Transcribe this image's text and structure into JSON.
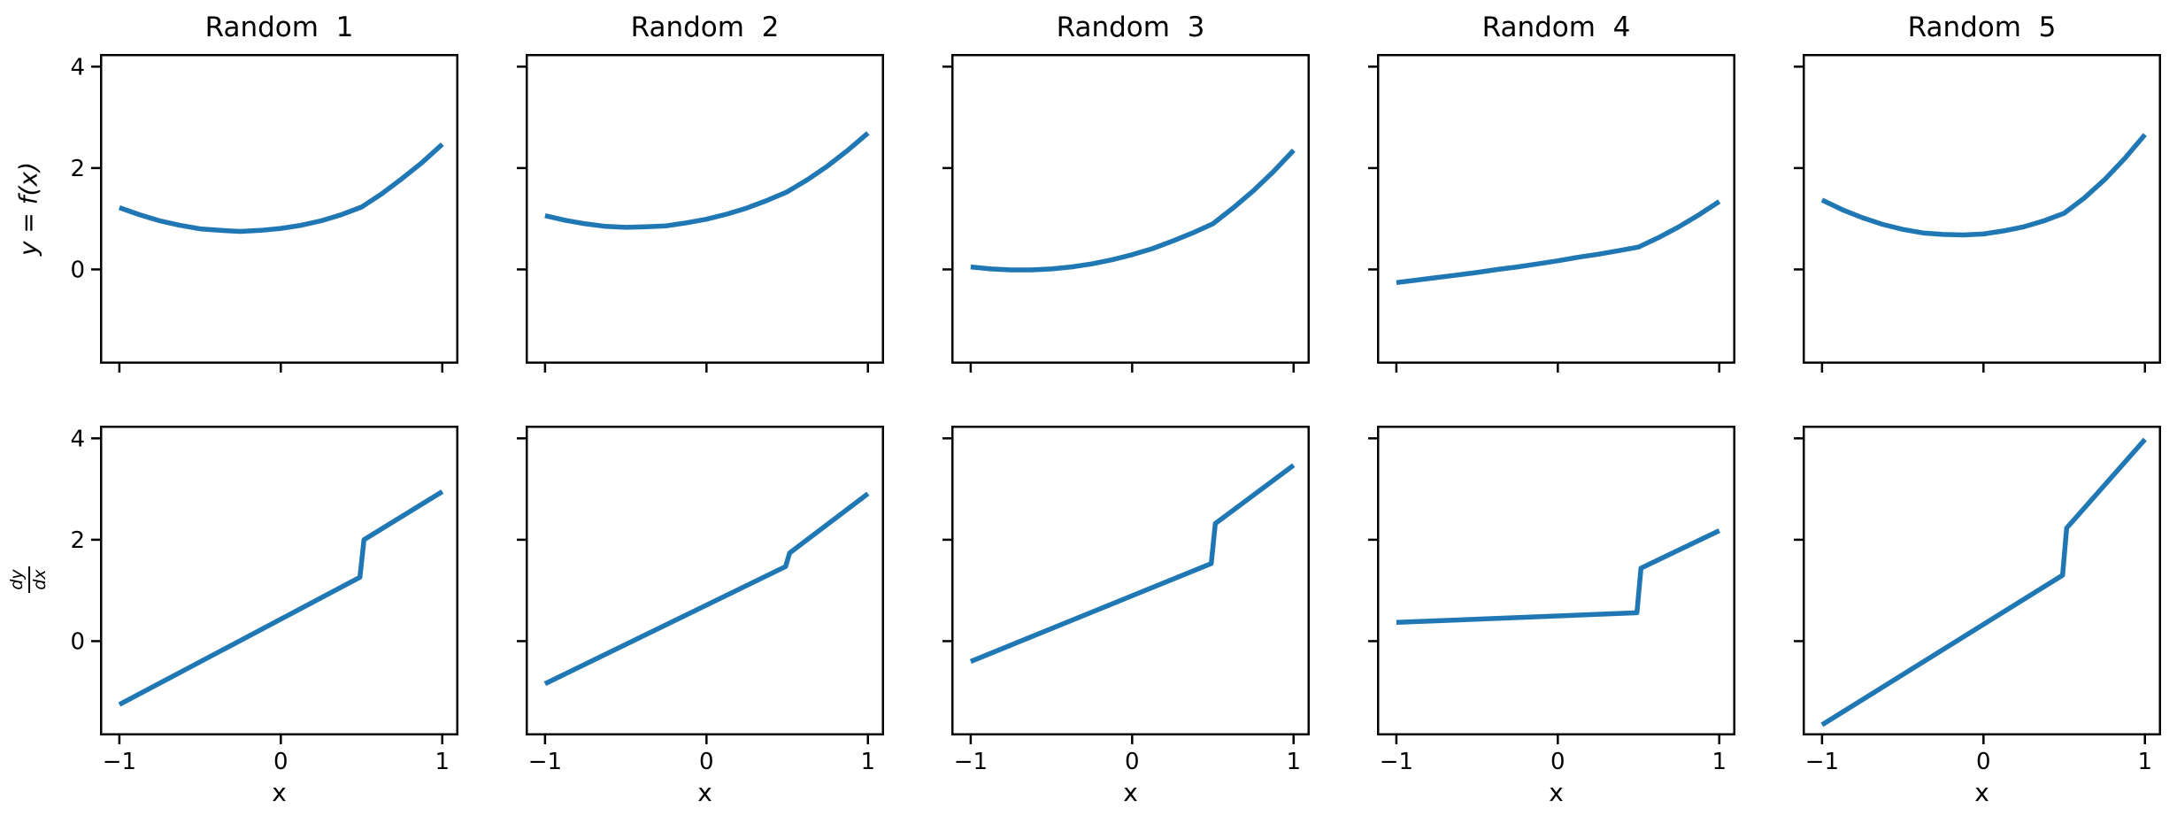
{
  "figure": {
    "background": "#ffffff",
    "line_color": "#1f77b4",
    "xlabel": "x",
    "ylabel_top": "y = f(x)",
    "ylabel_bottom_numerator": "dy",
    "ylabel_bottom_denominator": "dx",
    "columns": [
      {
        "title": "Random  1"
      },
      {
        "title": "Random  2"
      },
      {
        "title": "Random  3"
      },
      {
        "title": "Random  4"
      },
      {
        "title": "Random  5"
      }
    ],
    "axes": {
      "xlim": [
        -1.12,
        1.1
      ],
      "ylim": [
        -1.86,
        4.25
      ],
      "xticks": [
        -1,
        0,
        1
      ],
      "yticks": [
        4,
        2,
        0
      ],
      "xtick_labels": [
        "−1",
        "0",
        "1"
      ],
      "ytick_labels": [
        "4",
        "2",
        "0"
      ],
      "grid": false,
      "legend": "none"
    }
  },
  "chart_data": [
    {
      "type": "line",
      "row": 0,
      "col": 0,
      "title": "Random  1",
      "ylabel": "y = f(x)",
      "x": [
        -1,
        -0.875,
        -0.75,
        -0.625,
        -0.5,
        -0.375,
        -0.25,
        -0.125,
        0,
        0.125,
        0.25,
        0.375,
        0.5,
        0.625,
        0.75,
        0.875,
        1
      ],
      "y": [
        1.22,
        1.08,
        0.96,
        0.87,
        0.8,
        0.77,
        0.75,
        0.77,
        0.81,
        0.87,
        0.96,
        1.08,
        1.23,
        1.49,
        1.79,
        2.11,
        2.47
      ]
    },
    {
      "type": "line",
      "row": 0,
      "col": 1,
      "title": "Random  2",
      "ylabel": "y = f(x)",
      "x": [
        -1,
        -0.875,
        -0.75,
        -0.625,
        -0.5,
        -0.375,
        -0.25,
        -0.125,
        0,
        0.125,
        0.25,
        0.375,
        0.5,
        0.625,
        0.75,
        0.875,
        1
      ],
      "y": [
        1.06,
        0.97,
        0.9,
        0.85,
        0.83,
        0.84,
        0.86,
        0.92,
        0.99,
        1.09,
        1.21,
        1.36,
        1.53,
        1.77,
        2.04,
        2.35,
        2.69
      ]
    },
    {
      "type": "line",
      "row": 0,
      "col": 2,
      "title": "Random  3",
      "ylabel": "y = f(x)",
      "x": [
        -1,
        -0.875,
        -0.75,
        -0.625,
        -0.5,
        -0.375,
        -0.25,
        -0.125,
        0,
        0.125,
        0.25,
        0.375,
        0.5,
        0.625,
        0.75,
        0.875,
        1
      ],
      "y": [
        0.05,
        0.01,
        -0.01,
        -0.01,
        0.01,
        0.05,
        0.11,
        0.19,
        0.29,
        0.41,
        0.56,
        0.72,
        0.9,
        1.21,
        1.55,
        1.93,
        2.35
      ]
    },
    {
      "type": "line",
      "row": 0,
      "col": 3,
      "title": "Random  4",
      "ylabel": "y = f(x)",
      "x": [
        -1,
        -0.875,
        -0.75,
        -0.625,
        -0.5,
        -0.375,
        -0.25,
        -0.125,
        0,
        0.125,
        0.25,
        0.375,
        0.5,
        0.625,
        0.75,
        0.875,
        1
      ],
      "y": [
        -0.26,
        -0.21,
        -0.16,
        -0.11,
        -0.06,
        0.0,
        0.05,
        0.11,
        0.17,
        0.24,
        0.3,
        0.37,
        0.44,
        0.63,
        0.84,
        1.08,
        1.34
      ]
    },
    {
      "type": "line",
      "row": 0,
      "col": 4,
      "title": "Random  5",
      "ylabel": "y = f(x)",
      "x": [
        -1,
        -0.875,
        -0.75,
        -0.625,
        -0.5,
        -0.375,
        -0.25,
        -0.125,
        0,
        0.125,
        0.25,
        0.375,
        0.5,
        0.625,
        0.75,
        0.875,
        1
      ],
      "y": [
        1.37,
        1.18,
        1.02,
        0.89,
        0.79,
        0.72,
        0.69,
        0.68,
        0.7,
        0.76,
        0.84,
        0.96,
        1.11,
        1.41,
        1.77,
        2.19,
        2.66
      ]
    },
    {
      "type": "line",
      "row": 1,
      "col": 0,
      "title": "",
      "ylabel": "dy/dx",
      "x": [
        -1,
        0.49,
        0.515,
        1
      ],
      "y": [
        -1.25,
        1.26,
        2.0,
        2.95
      ]
    },
    {
      "type": "line",
      "row": 1,
      "col": 1,
      "title": "",
      "ylabel": "dy/dx",
      "x": [
        -1,
        0.49,
        0.515,
        1
      ],
      "y": [
        -0.84,
        1.47,
        1.74,
        2.91
      ]
    },
    {
      "type": "line",
      "row": 1,
      "col": 2,
      "title": "",
      "ylabel": "dy/dx",
      "x": [
        -1,
        0.49,
        0.515,
        1
      ],
      "y": [
        -0.4,
        1.53,
        2.32,
        3.47
      ]
    },
    {
      "type": "line",
      "row": 1,
      "col": 3,
      "title": "",
      "ylabel": "dy/dx",
      "x": [
        -1,
        0.49,
        0.515,
        1
      ],
      "y": [
        0.37,
        0.56,
        1.44,
        2.18
      ]
    },
    {
      "type": "line",
      "row": 1,
      "col": 4,
      "title": "",
      "ylabel": "dy/dx",
      "x": [
        -1,
        0.49,
        0.515,
        1
      ],
      "y": [
        -1.65,
        1.3,
        2.23,
        3.98
      ]
    }
  ]
}
